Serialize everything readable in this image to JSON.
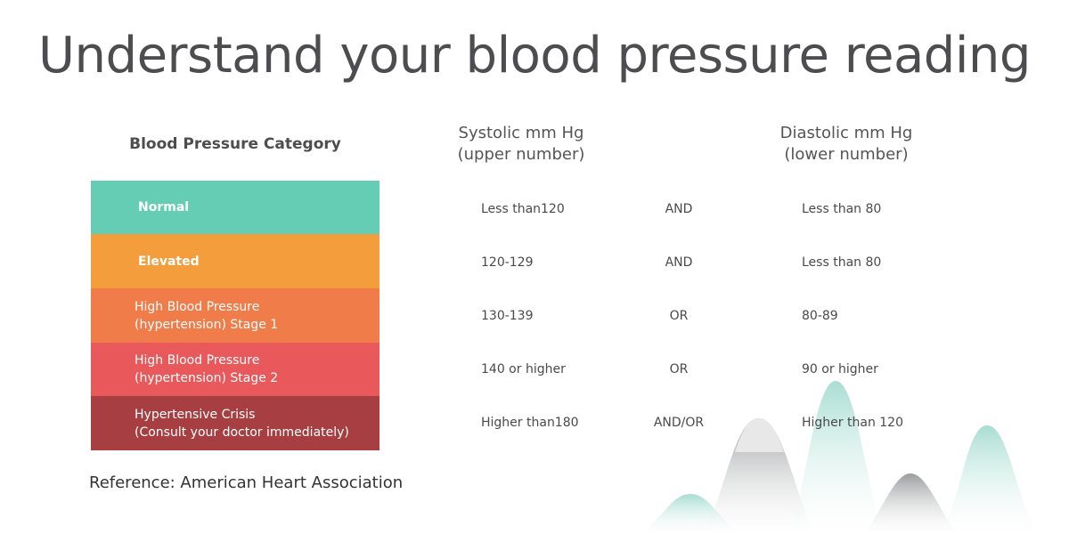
{
  "title": "Understand your blood pressure reading",
  "headers": {
    "category": "Blood Pressure Category",
    "systolic": [
      "Systolic mm Hg",
      "(upper number)"
    ],
    "diastolic": [
      "Diastolic mm Hg",
      "(lower number)"
    ]
  },
  "rows": [
    {
      "category": [
        "Normal"
      ],
      "color": "#65cdb3",
      "systolic": "Less than120",
      "conjunction": "AND",
      "diastolic": "Less than 80"
    },
    {
      "category": [
        "Elevated"
      ],
      "color": "#f39d3c",
      "systolic": "120-129",
      "conjunction": "AND",
      "diastolic": "Less than 80"
    },
    {
      "category": [
        "High Blood Pressure",
        "(hypertension) Stage 1"
      ],
      "color": "#f07c49",
      "systolic": "130-139",
      "conjunction": "OR",
      "diastolic": "80-89"
    },
    {
      "category": [
        "High Blood Pressure",
        "(hypertension) Stage 2"
      ],
      "color": "#e9585a",
      "systolic": "140 or higher",
      "conjunction": "OR",
      "diastolic": "90 or higher"
    },
    {
      "category": [
        "Hypertensive Crisis",
        "(Consult your doctor immediately)"
      ],
      "color": "#a73f42",
      "systolic": "Higher than180",
      "conjunction": "AND/OR",
      "diastolic": "Higher than 120"
    }
  ],
  "reference": "Reference: American Heart Association"
}
